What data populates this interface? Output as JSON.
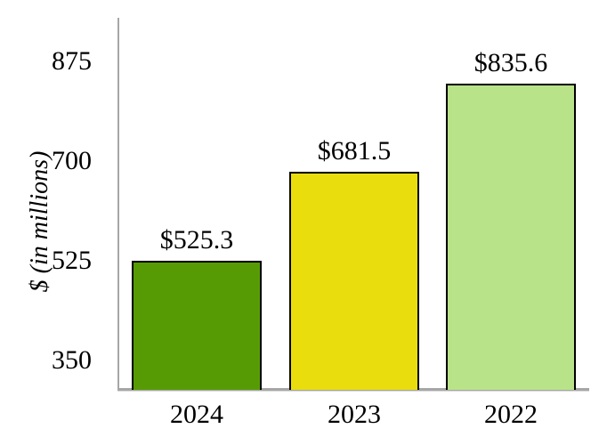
{
  "chart_data": {
    "type": "bar",
    "categories": [
      "2024",
      "2023",
      "2022"
    ],
    "values": [
      525.3,
      681.5,
      835.6
    ],
    "bar_labels": [
      "$525.3",
      "$681.5",
      "$835.6"
    ],
    "bar_colors": [
      "#579b04",
      "#e9dd0e",
      "#b9e389"
    ],
    "title": "",
    "xlabel": "",
    "ylabel": "$ (in millions)",
    "yticks": [
      350,
      525,
      700,
      875
    ],
    "ylim": [
      300,
      952
    ],
    "grid": false,
    "legend": false,
    "axis_color": "#a6a6a6",
    "bar_border_color": "#000000",
    "text_color": "#000000",
    "background_color": "#ffffff"
  }
}
